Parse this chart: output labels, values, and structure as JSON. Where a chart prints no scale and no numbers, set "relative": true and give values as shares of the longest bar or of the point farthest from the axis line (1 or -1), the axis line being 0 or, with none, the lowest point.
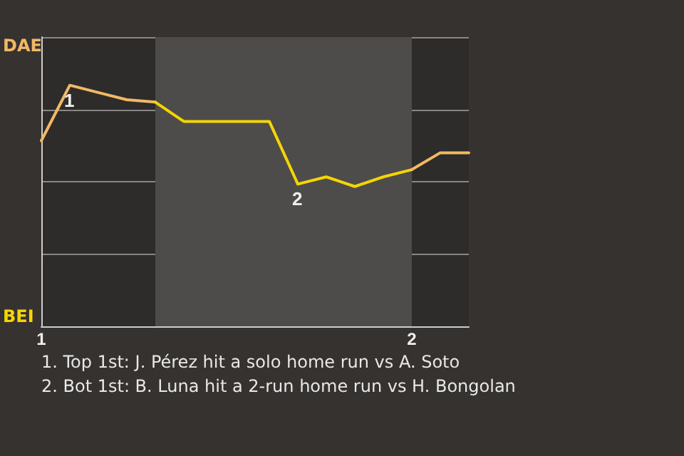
{
  "chart_data": {
    "type": "line",
    "relative": true,
    "categories": [
      "1",
      null,
      null,
      null,
      null,
      null,
      null,
      null,
      null,
      null,
      null,
      null,
      null,
      "2",
      null,
      null
    ],
    "series": [
      {
        "color": "#f2b866",
        "values": [
          0.77,
          1,
          0.97,
          0.94,
          0.93,
          null,
          null,
          null,
          null,
          null,
          null,
          null,
          null,
          null,
          null,
          null
        ]
      },
      {
        "color": "#f5d400",
        "values": [
          null,
          null,
          null,
          null,
          0.93,
          0.85,
          0.85,
          0.85,
          0.85,
          0.59,
          0.62,
          0.58,
          0.62,
          0.65,
          null,
          null
        ]
      },
      {
        "color": "#f2b866",
        "values": [
          null,
          null,
          null,
          null,
          null,
          null,
          null,
          null,
          null,
          null,
          null,
          null,
          null,
          0.65,
          0.72,
          0.72
        ]
      }
    ],
    "grid": "y",
    "marker": "none",
    "line_style": "solid",
    "annotations": [
      "DAE",
      "BEI",
      {
        "text": "1",
        "y": 1
      },
      {
        "text": "2",
        "y": 0.59
      },
      "1. Top 1st: J. Pérez hit a solo home run vs A. Soto",
      "2. Bot 1st: B. Luna hit a 2-run home run vs H. Bongolan"
    ]
  }
}
